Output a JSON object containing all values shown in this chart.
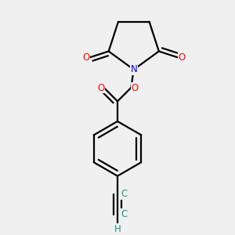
{
  "background_color": "#f0f0f0",
  "atom_colors": {
    "C": "#1a9688",
    "N": "#0000ff",
    "O": "#ff0000",
    "H": "#1a9688"
  },
  "bond_color": "#000000",
  "bond_width": 1.6,
  "font_size_atom": 8.5,
  "fig_xlim": [
    -0.75,
    0.75
  ],
  "fig_ylim": [
    -1.4,
    1.1
  ]
}
